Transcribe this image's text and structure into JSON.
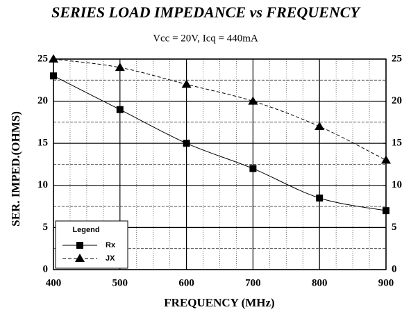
{
  "chart_data": {
    "type": "line",
    "title": "SERIES LOAD IMPEDANCE vs FREQUENCY",
    "subtitle": "Vcc = 20V, Icq = 440mA",
    "x_label": "FREQUENCY (MHz)",
    "y_label": "SER. IMPED.(OHMS)",
    "x": [
      400,
      500,
      600,
      700,
      800,
      900
    ],
    "series": [
      {
        "name": "Rx",
        "color": "#000000",
        "marker": "square",
        "dash": false,
        "values": [
          23,
          19,
          15,
          12,
          8.5,
          7
        ]
      },
      {
        "name": "JX",
        "color": "#000000",
        "marker": "triangle",
        "dash": true,
        "values": [
          25,
          24,
          22,
          20,
          17,
          13
        ]
      }
    ],
    "legend_title": "Legend",
    "legend": "lower left",
    "xlim": [
      400,
      900
    ],
    "xticks": [
      400,
      500,
      600,
      700,
      800,
      900
    ],
    "ylim": [
      0,
      25
    ],
    "yticks": [
      0,
      5,
      10,
      15,
      20,
      25
    ],
    "y2lim": [
      0,
      25
    ],
    "y2ticks": [
      0,
      5,
      10,
      15,
      20,
      25
    ],
    "grid": true
  }
}
